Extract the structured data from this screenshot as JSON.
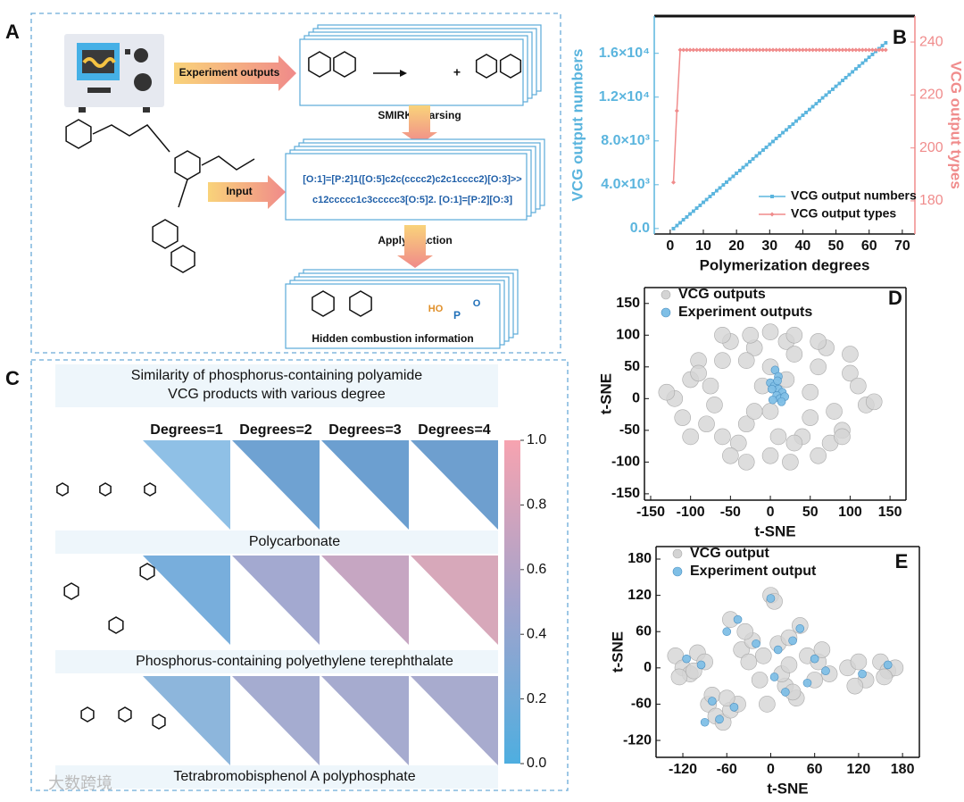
{
  "panel_labels": [
    "A",
    "B",
    "C",
    "D",
    "E"
  ],
  "panel_a": {
    "experiment_arrow": "Experiment outputs",
    "smirks_step": "SMIRKS parsing",
    "input_arrow": "Input",
    "apply_step": "Apply reaction",
    "smirks_lines": [
      "[O:1]=[P:2]1([O:5]c2c(cccc2)c2c1cccc2)[O:3]>>",
      "c12ccccc1c3ccccc3[O:5]2. [O:1]=[P:2][O:3]"
    ],
    "plus": "+",
    "product_labels": [
      "HO",
      "P",
      "O"
    ],
    "product_box": "Hidden combustion information"
  },
  "panel_c": {
    "title": [
      "Similarity of phosphorus-containing polyamide",
      "VCG products with various degree"
    ],
    "degrees": [
      "Degrees=1",
      "Degrees=2",
      "Degrees=3",
      "Degrees=4"
    ],
    "polymers": [
      "Polycarbonate",
      "Phosphorus-containing polyethylene terephthalate",
      "Tetrabromobisphenol A polyphosphate"
    ],
    "colorbar": {
      "lim": [
        0,
        1
      ],
      "ticks": [
        {
          "value": 0,
          "label": "0.0"
        },
        {
          "value": 0.2,
          "label": "0.2"
        },
        {
          "value": 0.4,
          "label": "0.4"
        },
        {
          "value": 0.6,
          "label": "0.6"
        },
        {
          "value": 0.8,
          "label": "0.8"
        },
        {
          "value": 1,
          "label": "1.0"
        }
      ]
    }
  },
  "watermark": "大数跨境",
  "chart_data": [
    {
      "type": "line",
      "xlabel": "Polymerization degrees",
      "ylabel": "VCG output numbers",
      "y2label": "VCG output types",
      "x": [
        1,
        2,
        3,
        4,
        5,
        6,
        7,
        8,
        9,
        10,
        11,
        12,
        13,
        14,
        15,
        16,
        17,
        18,
        19,
        20,
        21,
        22,
        23,
        24,
        25,
        26,
        27,
        28,
        29,
        30,
        31,
        32,
        33,
        34,
        35,
        36,
        37,
        38,
        39,
        40,
        41,
        42,
        43,
        44,
        45,
        46,
        47,
        48,
        49,
        50,
        51,
        52,
        53,
        54,
        55,
        56,
        57,
        58,
        59,
        60,
        61,
        62,
        63,
        64,
        65
      ],
      "series": [
        {
          "name": "VCG output numbers",
          "color": "#5bb5de",
          "marker": "square",
          "values": [
            0,
            265,
            530,
            795,
            1060,
            1325,
            1590,
            1855,
            2120,
            2385,
            2650,
            2915,
            3180,
            3445,
            3710,
            3975,
            4240,
            4505,
            4770,
            5035,
            5300,
            5565,
            5830,
            6095,
            6360,
            6625,
            6890,
            7155,
            7420,
            7685,
            7950,
            8215,
            8480,
            8745,
            9010,
            9275,
            9540,
            9805,
            10070,
            10335,
            10600,
            10865,
            11130,
            11395,
            11660,
            11925,
            12190,
            12455,
            12720,
            12985,
            13250,
            13515,
            13780,
            14045,
            14310,
            14575,
            14840,
            15105,
            15370,
            15635,
            15900,
            16165,
            16430,
            16695,
            16960
          ]
        },
        {
          "name": "VCG output types",
          "color": "#f08c8c",
          "marker": "diamond",
          "axis": "y2",
          "values": [
            187,
            214,
            237,
            237,
            237,
            237,
            237,
            237,
            237,
            237,
            237,
            237,
            237,
            237,
            237,
            237,
            237,
            237,
            237,
            237,
            237,
            237,
            237,
            237,
            237,
            237,
            237,
            237,
            237,
            237,
            237,
            237,
            237,
            237,
            237,
            237,
            237,
            237,
            237,
            237,
            237,
            237,
            237,
            237,
            237,
            237,
            237,
            237,
            237,
            237,
            237,
            237,
            237,
            237,
            237,
            237,
            237,
            237,
            237,
            237,
            237,
            237,
            237,
            237,
            237
          ]
        }
      ],
      "xlim": [
        -4.8,
        73.8
      ],
      "xticks": [
        0,
        10,
        20,
        30,
        40,
        50,
        60,
        70
      ],
      "ylim": [
        -500,
        19400
      ],
      "yticks": [
        {
          "value": 0,
          "label": "0.0"
        },
        {
          "value": 4000,
          "label": "4.0×10³"
        },
        {
          "value": 8000,
          "label": "8.0×10³"
        },
        {
          "value": 12000,
          "label": "1.2×10⁴"
        },
        {
          "value": 16000,
          "label": "1.6×10⁴"
        }
      ],
      "y2lim": [
        167.5,
        249.8
      ],
      "y2ticks": [
        180,
        200,
        220,
        240
      ],
      "legend": "lower right"
    },
    {
      "type": "scatter",
      "xlabel": "t-SNE",
      "ylabel": "t-SNE",
      "series": [
        {
          "name": "VCG outputs",
          "color": "#d4d4d4",
          "x": [
            -120,
            -100,
            -80,
            -60,
            -40,
            -20,
            0,
            20,
            40,
            60,
            80,
            100,
            120,
            -110,
            -90,
            -70,
            -50,
            -30,
            -10,
            10,
            30,
            50,
            70,
            90,
            110,
            -100,
            -75,
            -50,
            -25,
            0,
            25,
            50,
            75,
            100,
            -90,
            -60,
            -30,
            0,
            30,
            60,
            90,
            -60,
            -30,
            0,
            30,
            60,
            -20,
            20,
            -130,
            130
          ],
          "y": [
            0,
            30,
            -40,
            60,
            -70,
            80,
            -90,
            90,
            -60,
            50,
            -20,
            40,
            -10,
            -30,
            60,
            -10,
            90,
            -40,
            20,
            -60,
            70,
            -30,
            80,
            -50,
            20,
            -60,
            20,
            -90,
            100,
            50,
            -100,
            10,
            -70,
            70,
            40,
            -60,
            -100,
            -20,
            100,
            -90,
            -60,
            100,
            60,
            105,
            -70,
            90,
            -20,
            30,
            10,
            -5
          ]
        },
        {
          "name": "Experiment outputs",
          "color": "#7fbfe6",
          "x": [
            0,
            5,
            10,
            15,
            8,
            12,
            3,
            18,
            6,
            10,
            14,
            2,
            9
          ],
          "y": [
            25,
            20,
            15,
            10,
            5,
            0,
            -2,
            3,
            45,
            35,
            -5,
            15,
            28
          ]
        }
      ],
      "xlim": [
        -157.8,
        170
      ],
      "xticks": [
        -150,
        -100,
        -50,
        0,
        50,
        100,
        150
      ],
      "ylim": [
        -160,
        175
      ],
      "yticks": [
        -150,
        -100,
        -50,
        0,
        50,
        100,
        150
      ],
      "legend": "upper left"
    },
    {
      "type": "scatter",
      "xlabel": "t-SNE",
      "ylabel": "t-SNE",
      "series": [
        {
          "name": "VCG output",
          "color": "#d4d4d4",
          "x": [
            -130,
            -120,
            -110,
            -100,
            -90,
            -125,
            -105,
            -85,
            -75,
            -65,
            -55,
            -45,
            -80,
            -60,
            -40,
            -25,
            -10,
            -30,
            -15,
            10,
            25,
            40,
            20,
            35,
            50,
            65,
            80,
            60,
            70,
            0,
            5,
            -5,
            15,
            30,
            25,
            105,
            120,
            130,
            115,
            150,
            160,
            170,
            155,
            -55,
            -35
          ],
          "y": [
            20,
            0,
            -10,
            25,
            10,
            -15,
            -5,
            -60,
            -80,
            -90,
            -70,
            -60,
            -45,
            -50,
            30,
            45,
            20,
            10,
            -20,
            40,
            50,
            70,
            -30,
            -50,
            20,
            10,
            -10,
            -20,
            30,
            120,
            110,
            -60,
            -10,
            -40,
            5,
            0,
            10,
            -20,
            -30,
            10,
            -5,
            0,
            -15,
            80,
            60
          ]
        },
        {
          "name": "Experiment output",
          "color": "#7fbfe6",
          "x": [
            -115,
            -95,
            -80,
            -70,
            -50,
            -20,
            0,
            10,
            30,
            40,
            60,
            75,
            125,
            160,
            -90,
            -45,
            20,
            50,
            -60,
            5
          ],
          "y": [
            15,
            5,
            -55,
            -85,
            -65,
            40,
            115,
            30,
            45,
            65,
            15,
            -5,
            -10,
            5,
            -90,
            80,
            -40,
            -25,
            60,
            -15
          ]
        }
      ],
      "xlim": [
        -156.6,
        203
      ],
      "xticks": [
        -120,
        -60,
        0,
        60,
        120,
        180
      ],
      "ylim": [
        -148,
        200.7
      ],
      "yticks": [
        -120,
        -60,
        0,
        60,
        120,
        180
      ],
      "legend": "upper left"
    }
  ]
}
